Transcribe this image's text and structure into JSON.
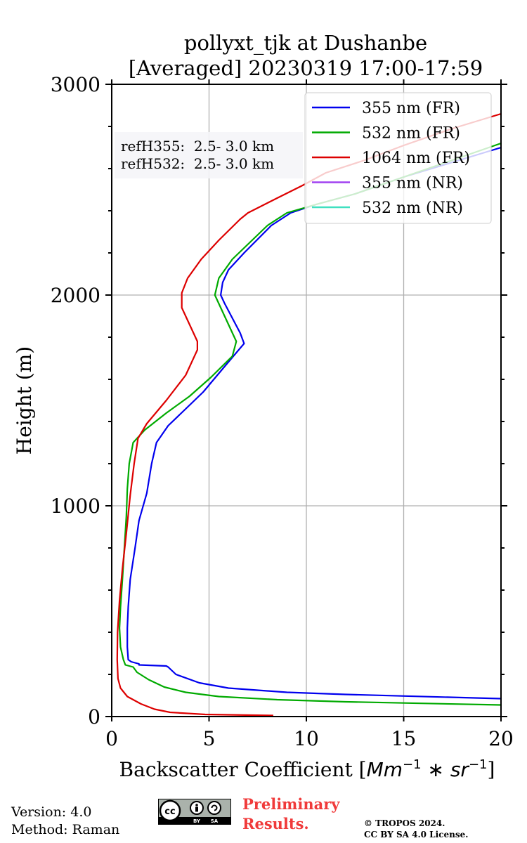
{
  "chart_data": {
    "type": "line",
    "title": [
      "pollyxt_tjk at Dushanbe",
      "[Averaged] 20230319 17:00-17:59"
    ],
    "xlabel": "Backscatter Coefficient [",
    "xlabel_math": "Mm",
    "xlabel_exp1": "−1",
    "xlabel_mid": " ∗ ",
    "xlabel_sr": "sr",
    "xlabel_exp2": "−1",
    "xlabel_end": "]",
    "ylabel": "Height (m)",
    "xlim": [
      0,
      20
    ],
    "ylim": [
      0,
      3000
    ],
    "xticks": [
      "0",
      "5",
      "10",
      "15",
      "20"
    ],
    "yticks": [
      "0",
      "1000",
      "2000",
      "3000"
    ],
    "ref_heights": [
      "refH355:  2.5- 3.0 km",
      "refH532:  2.5- 3.0 km"
    ],
    "legend_position": "top-right",
    "series": [
      {
        "name": "355 nm (FR)",
        "color": "#0000ee",
        "points": [
          [
            20.0,
            85
          ],
          [
            12.0,
            105
          ],
          [
            9.0,
            115
          ],
          [
            6.0,
            135
          ],
          [
            4.5,
            160
          ],
          [
            3.3,
            200
          ],
          [
            2.9,
            235
          ],
          [
            2.8,
            240
          ],
          [
            1.4,
            245
          ],
          [
            1.4,
            250
          ],
          [
            1.0,
            260
          ],
          [
            0.85,
            270
          ],
          [
            0.8,
            330
          ],
          [
            0.8,
            420
          ],
          [
            0.85,
            520
          ],
          [
            0.95,
            650
          ],
          [
            1.2,
            800
          ],
          [
            1.4,
            930
          ],
          [
            1.8,
            1060
          ],
          [
            2.05,
            1200
          ],
          [
            2.3,
            1300
          ],
          [
            2.9,
            1380
          ],
          [
            3.8,
            1460
          ],
          [
            4.7,
            1540
          ],
          [
            5.7,
            1650
          ],
          [
            6.8,
            1770
          ],
          [
            6.6,
            1820
          ],
          [
            5.8,
            1960
          ],
          [
            5.6,
            2000
          ],
          [
            5.7,
            2060
          ],
          [
            6.0,
            2120
          ],
          [
            6.8,
            2200
          ],
          [
            8.2,
            2330
          ],
          [
            9.2,
            2390
          ],
          [
            10.5,
            2430
          ],
          [
            12.5,
            2480
          ],
          [
            15.0,
            2560
          ],
          [
            17.5,
            2630
          ],
          [
            20.0,
            2700
          ]
        ]
      },
      {
        "name": "532 nm (FR)",
        "color": "#00aa00",
        "points": [
          [
            20.0,
            55
          ],
          [
            12.0,
            70
          ],
          [
            8.5,
            80
          ],
          [
            5.5,
            95
          ],
          [
            3.8,
            115
          ],
          [
            2.7,
            140
          ],
          [
            1.9,
            175
          ],
          [
            1.3,
            210
          ],
          [
            1.1,
            235
          ],
          [
            0.7,
            245
          ],
          [
            0.6,
            270
          ],
          [
            0.45,
            330
          ],
          [
            0.4,
            420
          ],
          [
            0.45,
            520
          ],
          [
            0.55,
            650
          ],
          [
            0.65,
            800
          ],
          [
            0.75,
            950
          ],
          [
            0.8,
            1080
          ],
          [
            0.9,
            1200
          ],
          [
            1.1,
            1300
          ],
          [
            1.7,
            1360
          ],
          [
            2.8,
            1440
          ],
          [
            4.0,
            1520
          ],
          [
            5.1,
            1610
          ],
          [
            6.2,
            1710
          ],
          [
            6.4,
            1780
          ],
          [
            5.6,
            1940
          ],
          [
            5.3,
            2000
          ],
          [
            5.5,
            2080
          ],
          [
            6.2,
            2170
          ],
          [
            8.0,
            2330
          ],
          [
            9.0,
            2390
          ],
          [
            10.5,
            2430
          ],
          [
            12.5,
            2480
          ],
          [
            15.0,
            2560
          ],
          [
            17.5,
            2640
          ],
          [
            20.0,
            2720
          ]
        ]
      },
      {
        "name": "1064 nm (FR)",
        "color": "#dd0000",
        "points": [
          [
            8.3,
            5
          ],
          [
            4.8,
            10
          ],
          [
            3.0,
            20
          ],
          [
            2.2,
            35
          ],
          [
            1.5,
            60
          ],
          [
            0.8,
            95
          ],
          [
            0.45,
            135
          ],
          [
            0.32,
            180
          ],
          [
            0.28,
            270
          ],
          [
            0.3,
            400
          ],
          [
            0.4,
            550
          ],
          [
            0.55,
            700
          ],
          [
            0.75,
            870
          ],
          [
            0.95,
            1050
          ],
          [
            1.15,
            1200
          ],
          [
            1.35,
            1320
          ],
          [
            1.8,
            1390
          ],
          [
            2.8,
            1500
          ],
          [
            3.8,
            1620
          ],
          [
            4.4,
            1740
          ],
          [
            4.4,
            1780
          ],
          [
            4.0,
            1860
          ],
          [
            3.6,
            1940
          ],
          [
            3.6,
            2010
          ],
          [
            3.9,
            2080
          ],
          [
            4.6,
            2170
          ],
          [
            5.5,
            2260
          ],
          [
            6.6,
            2360
          ],
          [
            7.0,
            2390
          ],
          [
            8.5,
            2460
          ],
          [
            9.8,
            2520
          ],
          [
            11.0,
            2580
          ],
          [
            13.0,
            2640
          ],
          [
            15.0,
            2710
          ],
          [
            17.5,
            2790
          ],
          [
            20.0,
            2860
          ]
        ]
      },
      {
        "name": "355 nm (NR)",
        "color": "#a040f0",
        "points": []
      },
      {
        "name": "532 nm (NR)",
        "color": "#40e0c0",
        "points": []
      }
    ]
  },
  "footer": {
    "version": "Version: 4.0",
    "method": "Method: Raman",
    "prelim_line1": "Preliminary",
    "prelim_line2": "Results.",
    "copyright_line1": "© TROPOS 2024.",
    "copyright_line2": "CC BY SA 4.0 License.",
    "badge_cc": "cc",
    "badge_by": "BY",
    "badge_sa": "SA"
  }
}
